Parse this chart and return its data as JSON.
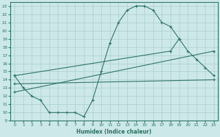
{
  "xlabel": "Humidex (Indice chaleur)",
  "bg_color": "#cce8e8",
  "grid_color": "#aacccc",
  "line_color": "#2a7060",
  "series1_x": [
    0,
    1,
    2,
    3,
    4,
    5,
    6,
    7,
    8,
    9,
    10,
    11,
    12,
    13,
    14,
    15,
    16,
    17,
    18,
    19
  ],
  "series1_y": [
    14.5,
    13.0,
    12.0,
    11.5,
    10.0,
    10.0,
    10.0,
    10.0,
    9.5,
    11.5,
    15.0,
    18.5,
    21.0,
    22.5,
    23.0,
    23.0,
    22.5,
    21.0,
    20.5,
    19.0
  ],
  "series2_x": [
    0,
    18,
    19,
    20,
    21,
    22,
    23
  ],
  "series2_y": [
    14.5,
    17.5,
    19.0,
    17.5,
    16.5,
    15.5,
    14.5
  ],
  "series3_x": [
    0,
    23
  ],
  "series3_y": [
    13.5,
    14.0
  ],
  "series4_x": [
    0,
    23
  ],
  "series4_y": [
    12.5,
    17.5
  ],
  "ylim": [
    9,
    23.5
  ],
  "xlim": [
    -0.5,
    23.5
  ],
  "yticks": [
    9,
    10,
    11,
    12,
    13,
    14,
    15,
    16,
    17,
    18,
    19,
    20,
    21,
    22,
    23
  ],
  "xticks": [
    0,
    1,
    2,
    3,
    4,
    5,
    6,
    7,
    8,
    9,
    10,
    11,
    12,
    13,
    14,
    15,
    16,
    17,
    18,
    19,
    20,
    21,
    22,
    23
  ]
}
